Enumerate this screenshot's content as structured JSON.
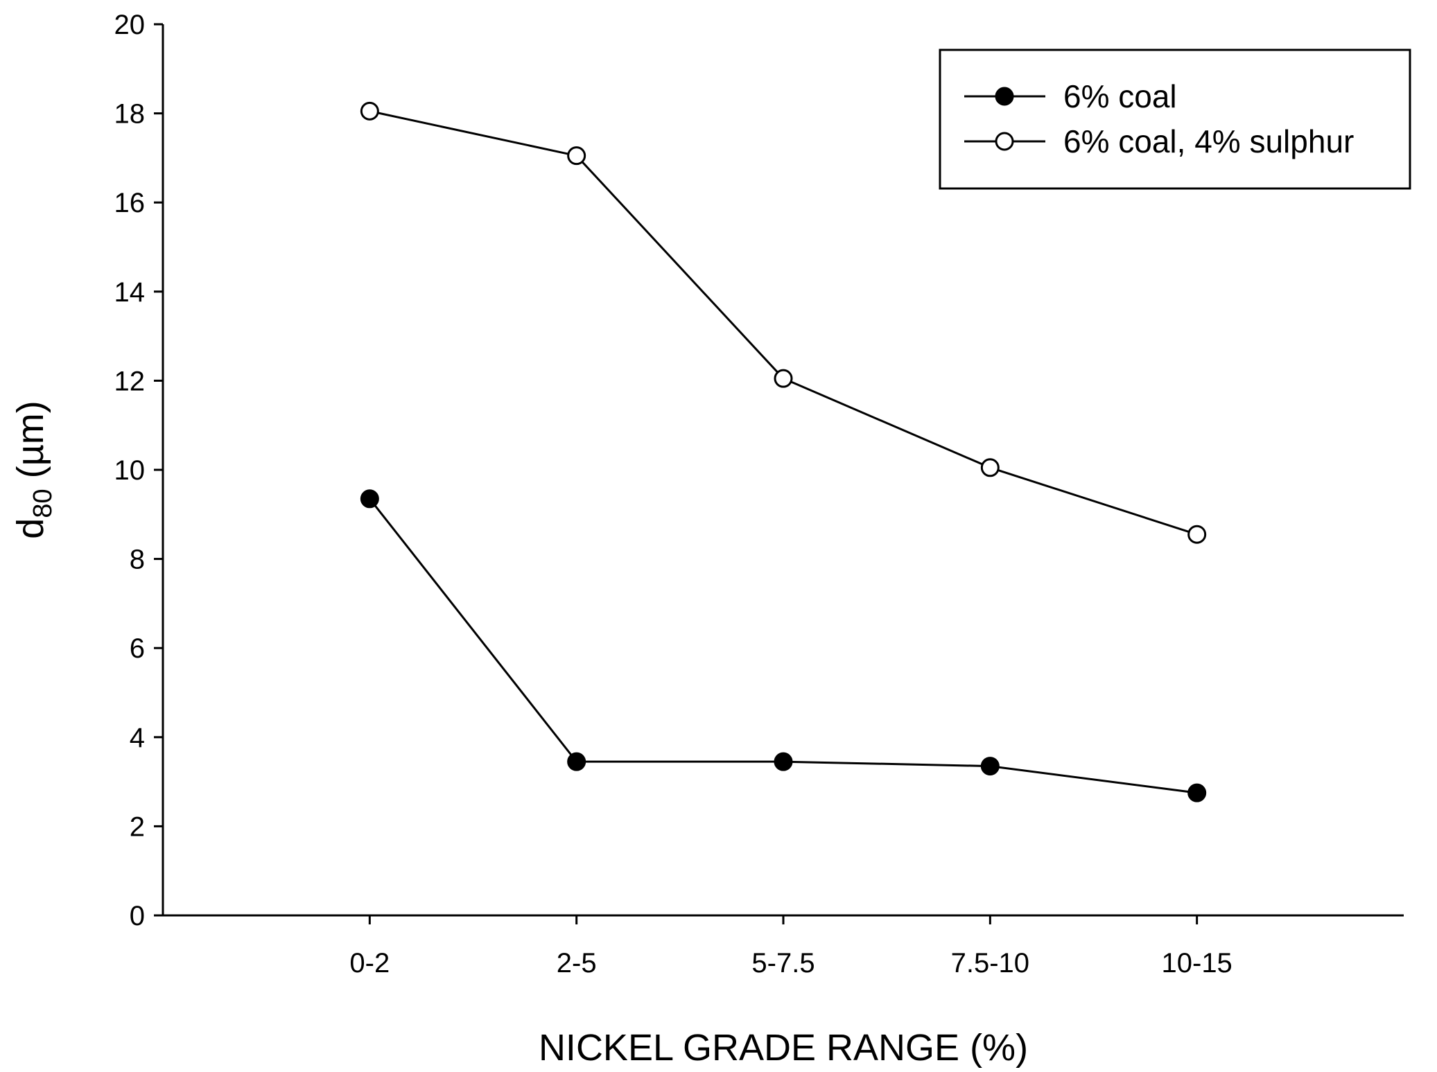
{
  "chart_data": {
    "type": "line",
    "title": "",
    "xlabel": "NICKEL GRADE RANGE (%)",
    "ylabel": {
      "main": "d",
      "subscript": "80",
      "unit": " (µm)"
    },
    "categories": [
      "0-2",
      "2-5",
      "5-7.5",
      "7.5-10",
      "10-15"
    ],
    "x_range_index": [
      -1,
      5
    ],
    "ylim": [
      0,
      20
    ],
    "yticks": [
      0,
      2,
      4,
      6,
      8,
      10,
      12,
      14,
      16,
      18,
      20
    ],
    "ytick_labels": [
      "0",
      "2",
      "4",
      "6",
      "8",
      "10",
      "12",
      "14",
      "16",
      "18",
      "20"
    ],
    "grid": false,
    "legend_position": "top-right",
    "series": [
      {
        "name": "6% coal",
        "marker": "filled-circle",
        "values": [
          9.35,
          3.45,
          3.45,
          3.35,
          2.75
        ]
      },
      {
        "name": "6% coal, 4% sulphur",
        "marker": "open-circle",
        "values": [
          18.05,
          17.05,
          12.05,
          10.05,
          8.55
        ]
      }
    ]
  }
}
